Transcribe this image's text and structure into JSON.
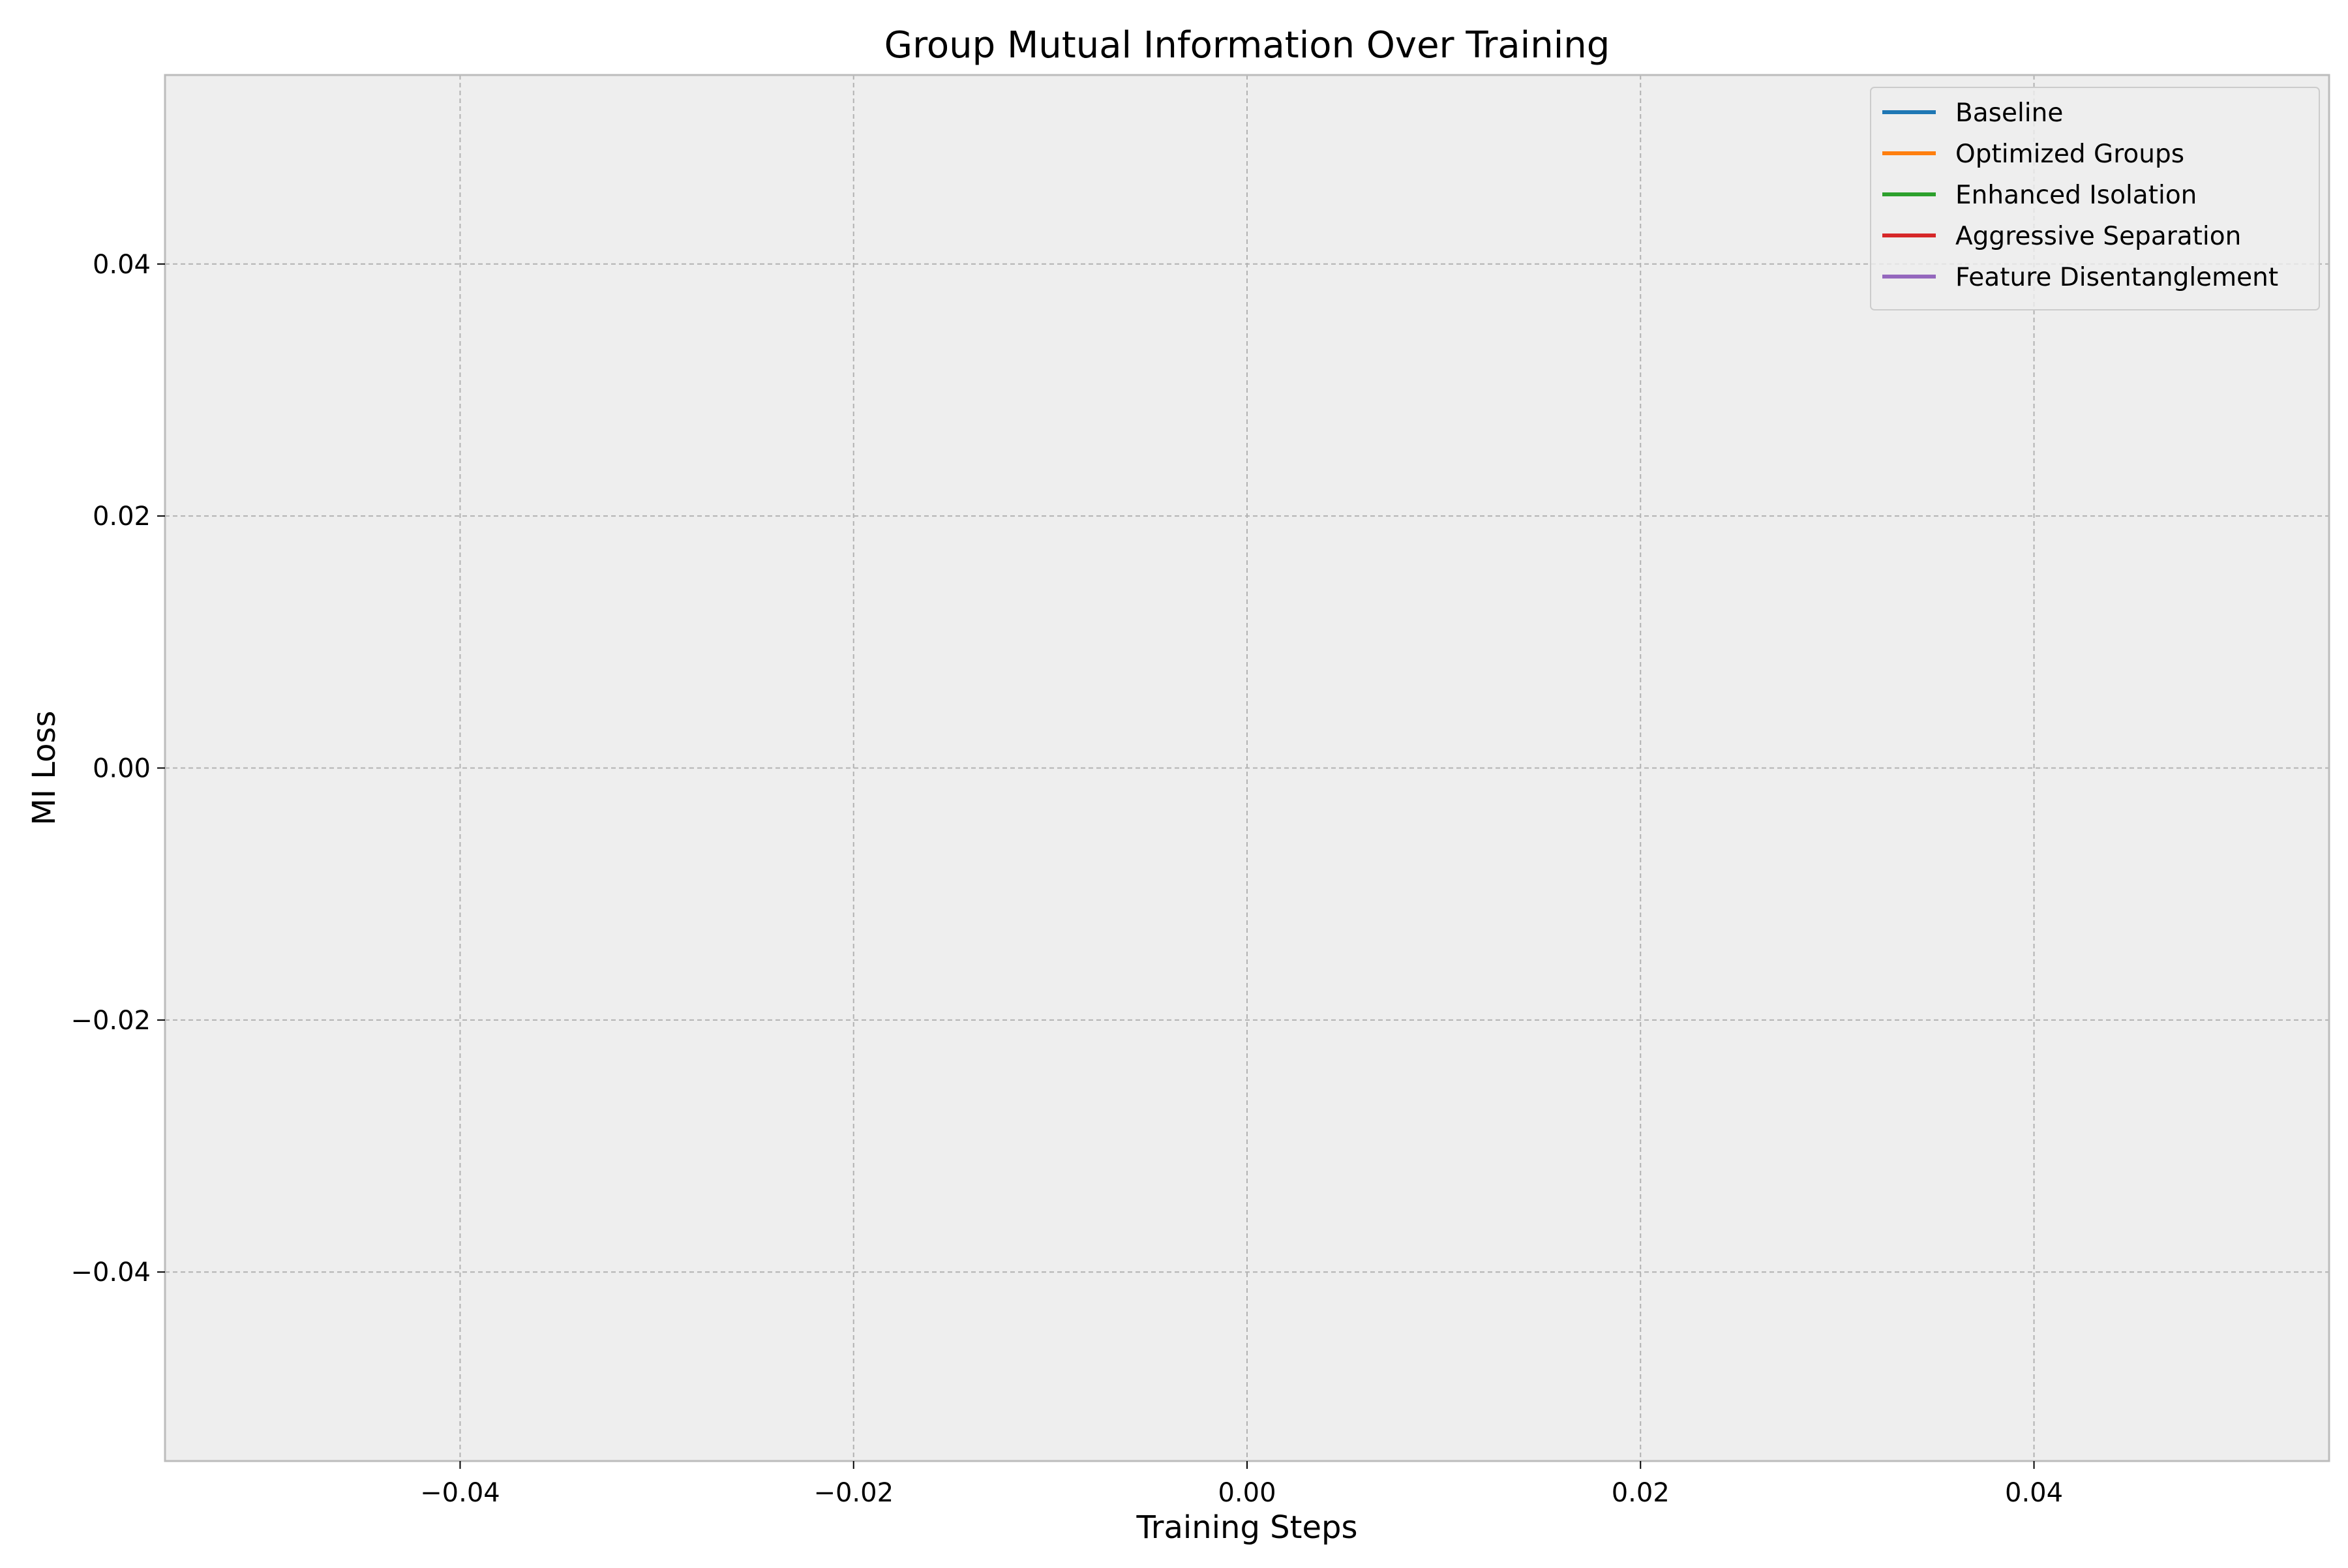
{
  "chart_data": {
    "type": "line",
    "title": "Group Mutual Information Over Training",
    "xlabel": "Training Steps",
    "ylabel": "MI Loss",
    "xlim": [
      -0.055,
      0.055
    ],
    "ylim": [
      -0.055,
      0.055
    ],
    "x_ticks": [
      -0.04,
      -0.02,
      0.0,
      0.02,
      0.04
    ],
    "y_ticks": [
      -0.04,
      -0.02,
      0.0,
      0.02,
      0.04
    ],
    "x_tick_labels": [
      "−0.04",
      "−0.02",
      "0.00",
      "0.02",
      "0.04"
    ],
    "y_tick_labels": [
      "−0.04",
      "−0.02",
      "0.00",
      "0.02",
      "0.04"
    ],
    "grid": true,
    "legend_position": "top-right",
    "series": [
      {
        "name": "Baseline",
        "color": "#1f77b4",
        "x": [],
        "y": []
      },
      {
        "name": "Optimized Groups",
        "color": "#ff7f0e",
        "x": [],
        "y": []
      },
      {
        "name": "Enhanced Isolation",
        "color": "#2ca02c",
        "x": [],
        "y": []
      },
      {
        "name": "Aggressive Separation",
        "color": "#d62728",
        "x": [],
        "y": []
      },
      {
        "name": "Feature Disentanglement",
        "color": "#9467bd",
        "x": [],
        "y": []
      }
    ],
    "colors": {
      "plot_background": "#eeeeee",
      "grid": "#b2b2b2",
      "frame": "#bcbcbc"
    }
  }
}
